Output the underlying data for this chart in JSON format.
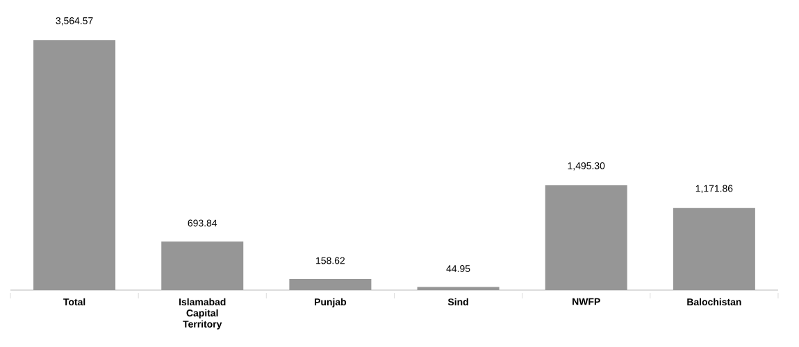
{
  "chart_data": {
    "type": "bar",
    "categories": [
      "Total",
      "Islamabad Capital Territory",
      "Punjab",
      "Sind",
      "NWFP",
      "Balochistan"
    ],
    "values": [
      3564.57,
      693.84,
      158.62,
      44.95,
      1495.3,
      1171.86
    ],
    "value_labels": [
      "3,564.57",
      "693.84",
      "158.62",
      "44.95",
      "1,495.30",
      "1,171.86"
    ],
    "color": "#969696"
  }
}
